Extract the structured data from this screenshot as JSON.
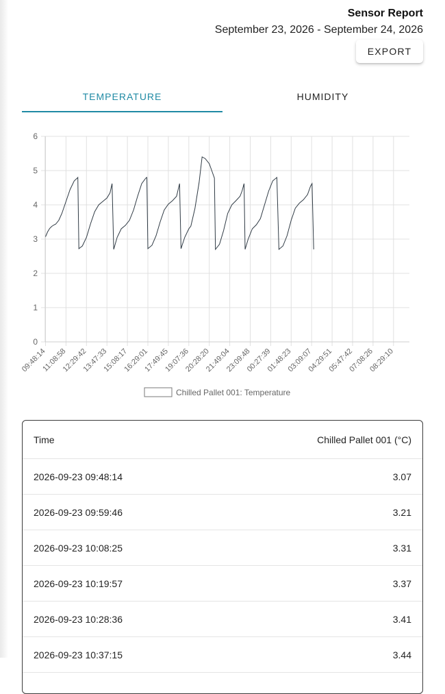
{
  "report": {
    "title": "Sensor Report",
    "date_range": "September 23, 2026 - September 24, 2026",
    "export_label": "EXPORT"
  },
  "tabs": [
    {
      "label": "TEMPERATURE",
      "active": true
    },
    {
      "label": "HUMIDITY",
      "active": false
    }
  ],
  "colors": {
    "accent": "#1f8aa4",
    "line": "#2f3a44",
    "grid": "#e0e0e0"
  },
  "chart_data": {
    "type": "line",
    "x": [
      "09:48:14",
      "11:08:58",
      "12:29:42",
      "13:47:33",
      "15:08:17",
      "16:29:01",
      "17:49:45",
      "19:07:36",
      "20:28:20",
      "21:49:04",
      "23:09:48",
      "00:27:39",
      "01:48:23",
      "03:09:07",
      "04:29:51",
      "05:47:42",
      "07:08:26",
      "08:29:10"
    ],
    "series": [
      {
        "name": "Chilled Pallet 001: Temperature",
        "points": [
          [
            0,
            3.07
          ],
          [
            0.1,
            3.21
          ],
          [
            0.2,
            3.31
          ],
          [
            0.3,
            3.37
          ],
          [
            0.4,
            3.41
          ],
          [
            0.5,
            3.44
          ],
          [
            0.65,
            3.55
          ],
          [
            0.8,
            3.75
          ],
          [
            1.0,
            4.1
          ],
          [
            1.2,
            4.45
          ],
          [
            1.4,
            4.7
          ],
          [
            1.55,
            4.78
          ],
          [
            1.58,
            4.8
          ],
          [
            1.63,
            2.72
          ],
          [
            1.8,
            2.8
          ],
          [
            2.0,
            3.05
          ],
          [
            2.2,
            3.45
          ],
          [
            2.4,
            3.8
          ],
          [
            2.6,
            4.0
          ],
          [
            2.8,
            4.1
          ],
          [
            3.0,
            4.2
          ],
          [
            3.15,
            4.35
          ],
          [
            3.25,
            4.62
          ],
          [
            3.33,
            2.7
          ],
          [
            3.5,
            3.05
          ],
          [
            3.7,
            3.3
          ],
          [
            3.9,
            3.4
          ],
          [
            4.1,
            3.55
          ],
          [
            4.3,
            3.85
          ],
          [
            4.5,
            4.25
          ],
          [
            4.7,
            4.62
          ],
          [
            4.9,
            4.78
          ],
          [
            4.95,
            4.8
          ],
          [
            5.0,
            2.72
          ],
          [
            5.2,
            2.82
          ],
          [
            5.4,
            3.1
          ],
          [
            5.6,
            3.5
          ],
          [
            5.8,
            3.85
          ],
          [
            6.0,
            4.02
          ],
          [
            6.2,
            4.12
          ],
          [
            6.4,
            4.25
          ],
          [
            6.55,
            4.62
          ],
          [
            6.62,
            2.72
          ],
          [
            6.8,
            3.05
          ],
          [
            7.0,
            3.3
          ],
          [
            7.1,
            3.38
          ],
          [
            7.3,
            3.9
          ],
          [
            7.5,
            4.65
          ],
          [
            7.65,
            5.4
          ],
          [
            7.8,
            5.35
          ],
          [
            8.0,
            5.2
          ],
          [
            8.15,
            4.95
          ],
          [
            8.25,
            4.78
          ],
          [
            8.3,
            2.7
          ],
          [
            8.5,
            2.85
          ],
          [
            8.7,
            3.25
          ],
          [
            8.9,
            3.75
          ],
          [
            9.1,
            4.0
          ],
          [
            9.3,
            4.12
          ],
          [
            9.5,
            4.25
          ],
          [
            9.6,
            4.4
          ],
          [
            9.7,
            4.62
          ],
          [
            9.75,
            2.7
          ],
          [
            9.9,
            3.0
          ],
          [
            10.1,
            3.3
          ],
          [
            10.3,
            3.42
          ],
          [
            10.5,
            3.6
          ],
          [
            10.7,
            4.0
          ],
          [
            10.9,
            4.4
          ],
          [
            11.1,
            4.7
          ],
          [
            11.3,
            4.8
          ],
          [
            11.4,
            2.7
          ],
          [
            11.6,
            2.8
          ],
          [
            11.8,
            3.1
          ],
          [
            12.0,
            3.55
          ],
          [
            12.2,
            3.9
          ],
          [
            12.4,
            4.05
          ],
          [
            12.6,
            4.15
          ],
          [
            12.8,
            4.3
          ],
          [
            12.95,
            4.55
          ],
          [
            13.02,
            4.62
          ],
          [
            13.1,
            2.7
          ]
        ]
      }
    ],
    "y_ticks": [
      "0",
      "1",
      "2",
      "3",
      "4",
      "5",
      "6"
    ],
    "ylim": [
      0,
      6
    ],
    "grid": true,
    "legend_position": "bottom"
  },
  "table": {
    "headers": [
      "Time",
      "Chilled Pallet 001 (°C)"
    ],
    "rows": [
      [
        "2026-09-23 09:48:14",
        "3.07"
      ],
      [
        "2026-09-23 09:59:46",
        "3.21"
      ],
      [
        "2026-09-23 10:08:25",
        "3.31"
      ],
      [
        "2026-09-23 10:19:57",
        "3.37"
      ],
      [
        "2026-09-23 10:28:36",
        "3.41"
      ],
      [
        "2026-09-23 10:37:15",
        "3.44"
      ]
    ]
  }
}
